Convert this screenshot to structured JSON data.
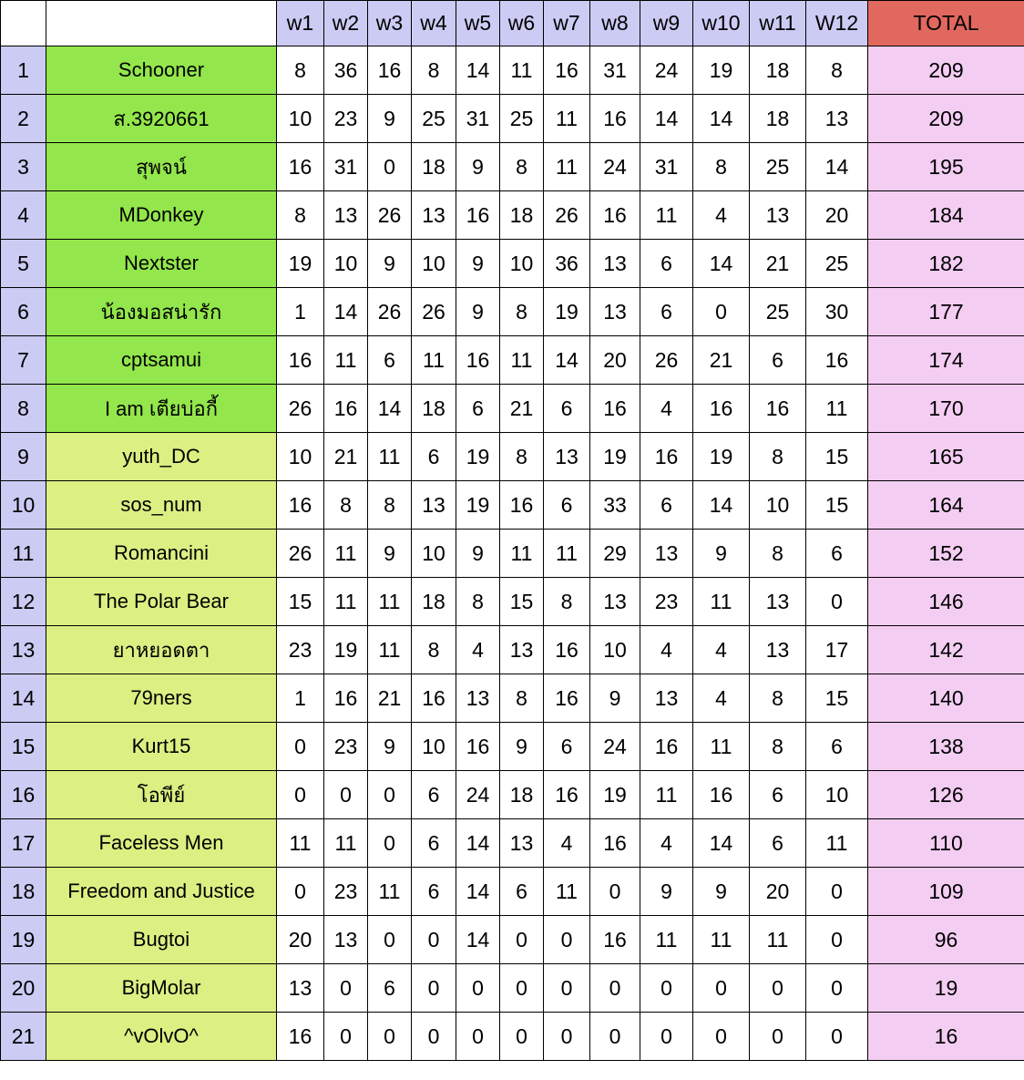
{
  "colors": {
    "header_lavender": "#cbcbf4",
    "rank_lavender": "#cbcbf4",
    "top_tier_green": "#93e64b",
    "lower_tier_yellowgreen": "#dbef82",
    "total_pink": "#f4cdf3",
    "total_header_salmon": "#e0685f",
    "grid_border": "#000000",
    "score_cell_white": "#ffffff"
  },
  "table": {
    "corner_rank_header": "",
    "corner_name_header": "",
    "week_headers": [
      "w1",
      "w2",
      "w3",
      "w4",
      "w5",
      "w6",
      "w7",
      "w8",
      "w9",
      "w10",
      "w11",
      "W12"
    ],
    "total_header": "TOTAL",
    "rows": [
      {
        "rank": "1",
        "name": "Schooner",
        "highlight": "green",
        "scores": [
          8,
          36,
          16,
          8,
          14,
          11,
          16,
          31,
          24,
          19,
          18,
          8
        ],
        "total": 209
      },
      {
        "rank": "2",
        "name": "ส.3920661",
        "highlight": "green",
        "scores": [
          10,
          23,
          9,
          25,
          31,
          25,
          11,
          16,
          14,
          14,
          18,
          13
        ],
        "total": 209
      },
      {
        "rank": "3",
        "name": "สุพจน์",
        "highlight": "green",
        "scores": [
          16,
          31,
          0,
          18,
          9,
          8,
          11,
          24,
          31,
          8,
          25,
          14
        ],
        "total": 195
      },
      {
        "rank": "4",
        "name": "MDonkey",
        "highlight": "green",
        "scores": [
          8,
          13,
          26,
          13,
          16,
          18,
          26,
          16,
          11,
          4,
          13,
          20
        ],
        "total": 184
      },
      {
        "rank": "5",
        "name": "Nextster",
        "highlight": "green",
        "scores": [
          19,
          10,
          9,
          10,
          9,
          10,
          36,
          13,
          6,
          14,
          21,
          25
        ],
        "total": 182
      },
      {
        "rank": "6",
        "name": "น้องมอสน่ารัก",
        "highlight": "green",
        "scores": [
          1,
          14,
          26,
          26,
          9,
          8,
          19,
          13,
          6,
          0,
          25,
          30
        ],
        "total": 177
      },
      {
        "rank": "7",
        "name": "cptsamui",
        "highlight": "green",
        "scores": [
          16,
          11,
          6,
          11,
          16,
          11,
          14,
          20,
          26,
          21,
          6,
          16
        ],
        "total": 174
      },
      {
        "rank": "8",
        "name": "I am เตียบ่อกี้",
        "highlight": "green",
        "scores": [
          26,
          16,
          14,
          18,
          6,
          21,
          6,
          16,
          4,
          16,
          16,
          11
        ],
        "total": 170
      },
      {
        "rank": "9",
        "name": "yuth_DC",
        "highlight": "yellow",
        "scores": [
          10,
          21,
          11,
          6,
          19,
          8,
          13,
          19,
          16,
          19,
          8,
          15
        ],
        "total": 165
      },
      {
        "rank": "10",
        "name": "sos_num",
        "highlight": "yellow",
        "scores": [
          16,
          8,
          8,
          13,
          19,
          16,
          6,
          33,
          6,
          14,
          10,
          15
        ],
        "total": 164
      },
      {
        "rank": "11",
        "name": "Romancini",
        "highlight": "yellow",
        "scores": [
          26,
          11,
          9,
          10,
          9,
          11,
          11,
          29,
          13,
          9,
          8,
          6
        ],
        "total": 152
      },
      {
        "rank": "12",
        "name": "The Polar Bear",
        "highlight": "yellow",
        "scores": [
          15,
          11,
          11,
          18,
          8,
          15,
          8,
          13,
          23,
          11,
          13,
          0
        ],
        "total": 146
      },
      {
        "rank": "13",
        "name": "ยาหยอดตา",
        "highlight": "yellow",
        "scores": [
          23,
          19,
          11,
          8,
          4,
          13,
          16,
          10,
          4,
          4,
          13,
          17
        ],
        "total": 142
      },
      {
        "rank": "14",
        "name": "79ners",
        "highlight": "yellow",
        "scores": [
          1,
          16,
          21,
          16,
          13,
          8,
          16,
          9,
          13,
          4,
          8,
          15
        ],
        "total": 140
      },
      {
        "rank": "15",
        "name": "Kurt15",
        "highlight": "yellow",
        "scores": [
          0,
          23,
          9,
          10,
          16,
          9,
          6,
          24,
          16,
          11,
          8,
          6
        ],
        "total": 138
      },
      {
        "rank": "16",
        "name": "โอพีย์",
        "highlight": "yellow",
        "scores": [
          0,
          0,
          0,
          6,
          24,
          18,
          16,
          19,
          11,
          16,
          6,
          10
        ],
        "total": 126
      },
      {
        "rank": "17",
        "name": "Faceless Men",
        "highlight": "yellow",
        "scores": [
          11,
          11,
          0,
          6,
          14,
          13,
          4,
          16,
          4,
          14,
          6,
          11
        ],
        "total": 110
      },
      {
        "rank": "18",
        "name": "Freedom and Justice",
        "highlight": "yellow",
        "scores": [
          0,
          23,
          11,
          6,
          14,
          6,
          11,
          0,
          9,
          9,
          20,
          0
        ],
        "total": 109
      },
      {
        "rank": "19",
        "name": "Bugtoi",
        "highlight": "yellow",
        "scores": [
          20,
          13,
          0,
          0,
          14,
          0,
          0,
          16,
          11,
          11,
          11,
          0
        ],
        "total": 96
      },
      {
        "rank": "20",
        "name": "BigMolar",
        "highlight": "yellow",
        "scores": [
          13,
          0,
          6,
          0,
          0,
          0,
          0,
          0,
          0,
          0,
          0,
          0
        ],
        "total": 19
      },
      {
        "rank": "21",
        "name": "^vOlvO^",
        "highlight": "yellow",
        "scores": [
          16,
          0,
          0,
          0,
          0,
          0,
          0,
          0,
          0,
          0,
          0,
          0
        ],
        "total": 16
      }
    ]
  }
}
